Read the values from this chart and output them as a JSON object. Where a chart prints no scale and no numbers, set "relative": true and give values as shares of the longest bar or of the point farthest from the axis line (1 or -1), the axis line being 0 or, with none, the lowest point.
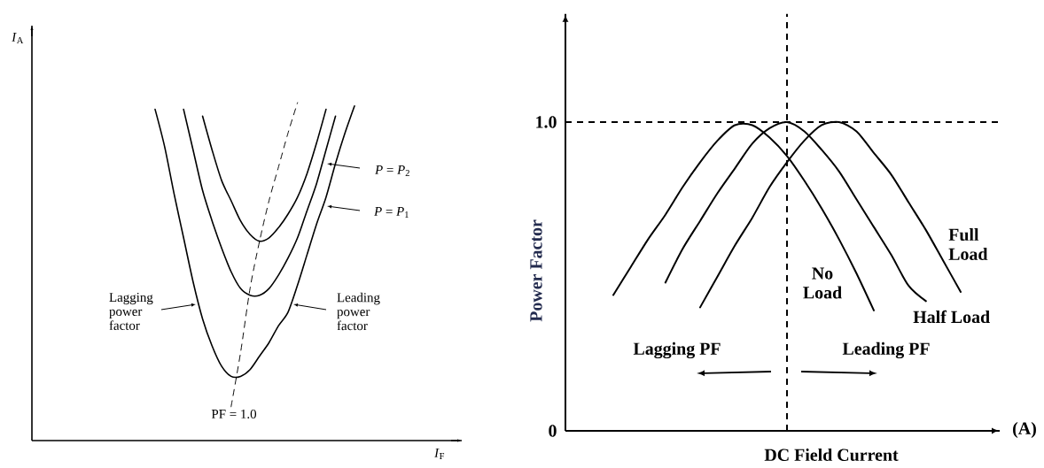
{
  "chart_data": [
    {
      "type": "line",
      "relative": true,
      "legend": "right",
      "xlabel": "*I*$_{F}$",
      "ylabel": "*I*$_{A}$",
      "categories": [
        null,
        null,
        null,
        null,
        null,
        null,
        null,
        null,
        null,
        null,
        null,
        null,
        null,
        null,
        null,
        null,
        null,
        null,
        null,
        null,
        null,
        null
      ],
      "series": [
        {
          "name": "*P* = *P*$_{1}$",
          "color": "#000000",
          "values": [
            0.98,
            0.87,
            0.73,
            0.6,
            0.47,
            0.36,
            0.28,
            0.22,
            0.19,
            0.19,
            0.21,
            0.25,
            0.29,
            0.34,
            0.38,
            0.46,
            0.55,
            0.64,
            0.72,
            0.82,
            0.91,
            0.99
          ]
        },
        {
          "name": "*P* = *P*$_{2}$",
          "color": "#000000",
          "values": [
            null,
            null,
            null,
            0.98,
            0.86,
            0.74,
            0.65,
            0.57,
            0.5,
            0.45,
            0.43,
            0.43,
            0.45,
            0.49,
            0.54,
            0.6,
            0.68,
            0.76,
            0.86,
            0.96,
            null,
            null
          ]
        },
        {
          "color": "#000000",
          "values": [
            null,
            null,
            null,
            null,
            null,
            0.96,
            0.86,
            0.77,
            0.71,
            0.65,
            0.61,
            0.59,
            0.6,
            0.63,
            0.67,
            0.72,
            0.79,
            0.88,
            0.98,
            null,
            null,
            null
          ]
        },
        {
          "name": "PF = 1.0",
          "color": "#000000",
          "line_style": "dashed",
          "values": [
            null,
            null,
            null,
            null,
            null,
            null,
            null,
            null,
            0.1,
            0.26,
            0.45,
            0.59,
            0.71,
            0.81,
            0.91,
            1.0,
            null,
            null,
            null,
            null,
            null,
            null
          ]
        }
      ],
      "annotations": [
        "Lagging power factor",
        "Leading power factor"
      ]
    },
    {
      "type": "line",
      "xlabel": "DC Field Current",
      "ylabel": "Power Factor",
      "tick_labels": "y",
      "ylim": [
        0,
        1.35
      ],
      "yticks": [
        0,
        {
          "value": 1.0,
          "label": "1.0"
        }
      ],
      "categories": [
        null,
        null,
        null,
        null,
        null,
        null,
        null,
        null,
        null,
        null,
        null,
        null,
        null,
        null,
        null,
        null,
        null,
        null,
        null,
        null,
        null
      ],
      "series": [
        {
          "name": "No Load",
          "color": "#000000",
          "values": [
            0.44,
            0.53,
            0.62,
            0.7,
            0.79,
            0.87,
            0.94,
            0.99,
            0.99,
            0.95,
            0.89,
            0.81,
            0.72,
            0.62,
            0.51,
            0.39,
            null,
            null,
            null,
            null,
            null
          ]
        },
        {
          "name": "Half Load",
          "color": "#000000",
          "values": [
            null,
            null,
            null,
            0.48,
            0.59,
            0.68,
            0.77,
            0.85,
            0.93,
            0.98,
            1.0,
            0.97,
            0.91,
            0.84,
            0.75,
            0.66,
            0.57,
            0.47,
            0.42,
            null,
            null
          ]
        },
        {
          "name": "Full Load",
          "color": "#000000",
          "values": [
            null,
            null,
            null,
            null,
            null,
            0.4,
            0.5,
            0.6,
            0.69,
            0.79,
            0.87,
            0.94,
            0.99,
            1.0,
            0.97,
            0.9,
            0.83,
            0.74,
            0.65,
            0.55,
            0.45
          ]
        }
      ],
      "ref_lines": [
        {
          "axis": "y",
          "value": 1.0,
          "line_style": "dashed"
        }
      ],
      "annotations": [
        "Lagging PF",
        "Leading PF",
        "(A)"
      ]
    }
  ]
}
